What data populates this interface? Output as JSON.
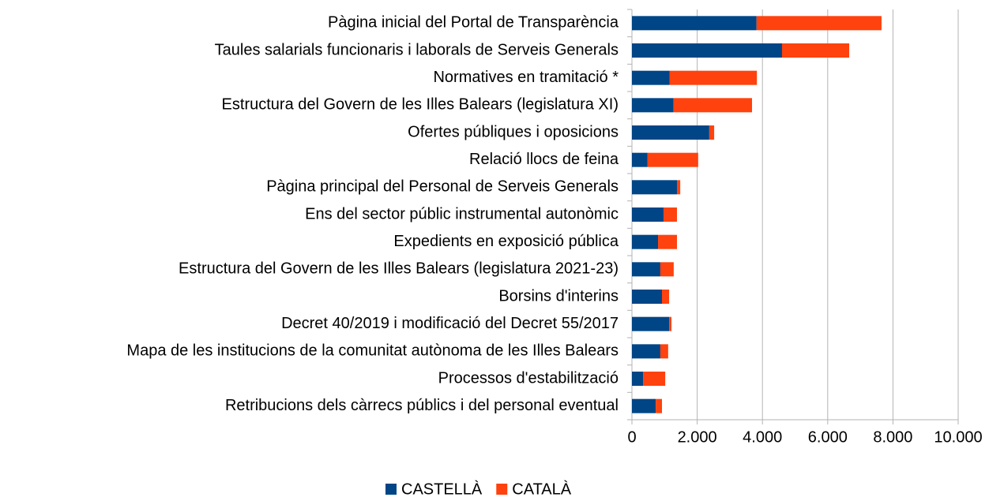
{
  "chart_data": {
    "type": "bar",
    "orientation": "horizontal",
    "stacked": true,
    "categories": [
      "Pàgina inicial del Portal de Transparència",
      "Taules salarials funcionaris i laborals de Serveis Generals",
      "Normatives en tramitació *",
      "Estructura del Govern de les Illes Balears (legislatura XI)",
      "Ofertes públiques i oposicions",
      "Relació llocs de feina",
      "Pàgina principal del Personal de Serveis Generals",
      "Ens del sector públic instrumental autonòmic",
      "Expedients en exposició pública",
      "Estructura del Govern de les Illes Balears (legislatura 2021-23)",
      "Borsins d'interins",
      "Decret 40/2019 i modificació del Decret 55/2017",
      "Mapa de les institucions de la comunitat autònoma de les Illes Balears",
      "Processos d'estabilització",
      "Retribucions dels càrrecs públics i del personal eventual"
    ],
    "series": [
      {
        "name": "CASTELLÀ",
        "color": "#004586",
        "values": [
          3820,
          4600,
          1150,
          1270,
          2370,
          480,
          1380,
          970,
          800,
          870,
          920,
          1140,
          870,
          340,
          730
        ]
      },
      {
        "name": "CATALÀ",
        "color": "#ff420e",
        "values": [
          3830,
          2060,
          2680,
          2410,
          150,
          1550,
          100,
          410,
          580,
          410,
          220,
          70,
          240,
          680,
          190
        ]
      }
    ],
    "xlim": [
      0,
      10000
    ],
    "xticks": [
      0,
      {
        "value": 2000,
        "label": "2.000"
      },
      {
        "value": 4000,
        "label": "4.000"
      },
      {
        "value": 6000,
        "label": "6.000"
      },
      {
        "value": 8000,
        "label": "8.000"
      },
      {
        "value": 10000,
        "label": "10.000"
      }
    ],
    "grid": true,
    "legend": "bottom"
  }
}
